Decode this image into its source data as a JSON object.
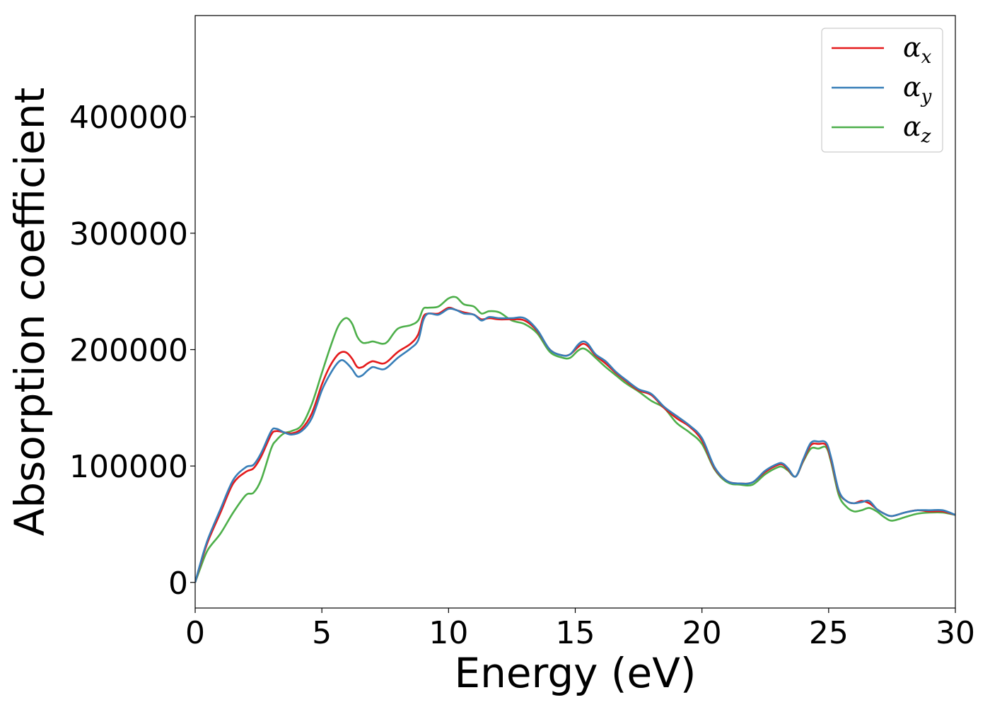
{
  "chart_data": {
    "type": "line",
    "title": "",
    "xlabel": "Energy (eV)",
    "ylabel": "Absorption coefficient",
    "xlim": [
      0,
      30
    ],
    "ylim": [
      -22000,
      487000
    ],
    "xticks": [
      0,
      5,
      10,
      15,
      20,
      25,
      30
    ],
    "yticks": [
      0,
      100000,
      200000,
      300000,
      400000
    ],
    "grid": false,
    "legend_position": "top-right",
    "series": [
      {
        "name": "α_x",
        "legend_base": "α",
        "legend_sub": "x",
        "color": "#e41a1c",
        "x": [
          0,
          0.2,
          0.5,
          1,
          1.5,
          2,
          2.3,
          2.6,
          3,
          3.2,
          3.5,
          3.8,
          4.2,
          4.6,
          5,
          5.3,
          5.6,
          5.8,
          6,
          6.2,
          6.4,
          6.6,
          6.8,
          7,
          7.2,
          7.4,
          7.6,
          8,
          8.5,
          8.8,
          9,
          9.2,
          9.6,
          10,
          10.3,
          10.6,
          11,
          11.3,
          11.6,
          12,
          12.5,
          13,
          13.5,
          14,
          14.5,
          14.8,
          15.1,
          15.3,
          15.5,
          15.8,
          16.2,
          16.6,
          17,
          17.5,
          18,
          18.5,
          19,
          19.5,
          20,
          20.5,
          21,
          21.5,
          22,
          22.5,
          23,
          23.2,
          23.4,
          23.7,
          24,
          24.3,
          24.6,
          24.9,
          25.1,
          25.4,
          25.7,
          26,
          26.3,
          26.6,
          26.9,
          27.2,
          27.5,
          28,
          28.5,
          29,
          29.5,
          30
        ],
        "y": [
          0,
          15000,
          35000,
          60000,
          85000,
          95000,
          98000,
          108000,
          127000,
          130000,
          129000,
          128000,
          132000,
          145000,
          170000,
          185000,
          195000,
          198000,
          197000,
          192000,
          185000,
          185000,
          188000,
          190000,
          189000,
          188000,
          190000,
          198000,
          205000,
          213000,
          228000,
          231000,
          231000,
          236000,
          234000,
          232000,
          230000,
          226000,
          227000,
          226000,
          226000,
          225000,
          216000,
          200000,
          195000,
          196000,
          202000,
          205000,
          203000,
          195000,
          188000,
          180000,
          173000,
          165000,
          161000,
          150000,
          141000,
          134000,
          122000,
          98000,
          87000,
          85000,
          86000,
          95000,
          101000,
          101000,
          97000,
          91000,
          105000,
          118000,
          119000,
          118000,
          105000,
          78000,
          70000,
          68000,
          70000,
          68000,
          63000,
          59000,
          57000,
          60000,
          62000,
          61000,
          61000,
          58000
        ]
      },
      {
        "name": "α_y",
        "legend_base": "α",
        "legend_sub": "y",
        "color": "#377eb8",
        "x": [
          0,
          0.2,
          0.5,
          1,
          1.5,
          2,
          2.3,
          2.6,
          3,
          3.2,
          3.5,
          3.8,
          4.2,
          4.6,
          5,
          5.3,
          5.6,
          5.8,
          6,
          6.2,
          6.4,
          6.6,
          6.8,
          7,
          7.2,
          7.4,
          7.6,
          8,
          8.5,
          8.8,
          9,
          9.2,
          9.6,
          10,
          10.3,
          10.6,
          11,
          11.3,
          11.6,
          12,
          12.5,
          13,
          13.5,
          14,
          14.5,
          14.8,
          15.1,
          15.3,
          15.5,
          15.8,
          16.2,
          16.6,
          17,
          17.5,
          18,
          18.5,
          19,
          19.5,
          20,
          20.5,
          21,
          21.5,
          22,
          22.5,
          23,
          23.2,
          23.4,
          23.7,
          24,
          24.3,
          24.6,
          24.9,
          25.1,
          25.4,
          25.7,
          26,
          26.3,
          26.6,
          26.9,
          27.2,
          27.5,
          28,
          28.5,
          29,
          29.5,
          30
        ],
        "y": [
          0,
          16000,
          37000,
          63000,
          88000,
          99000,
          101000,
          111000,
          130000,
          132000,
          129000,
          127000,
          130000,
          141000,
          165000,
          178000,
          188000,
          191000,
          188000,
          183000,
          177000,
          178000,
          182000,
          185000,
          184000,
          183000,
          185000,
          193000,
          201000,
          208000,
          225000,
          231000,
          230000,
          235000,
          234000,
          231000,
          230000,
          225000,
          228000,
          227000,
          227000,
          227000,
          217000,
          200000,
          195000,
          196000,
          204000,
          207000,
          205000,
          196000,
          190000,
          181000,
          174000,
          166000,
          162000,
          151000,
          143000,
          135000,
          124000,
          99000,
          87000,
          85000,
          86000,
          96000,
          102000,
          102000,
          98000,
          91000,
          106000,
          120000,
          121000,
          120000,
          107000,
          79000,
          70000,
          68000,
          69000,
          70000,
          63000,
          59000,
          57000,
          60000,
          62000,
          62000,
          62000,
          58000
        ]
      },
      {
        "name": "α_z",
        "legend_base": "α",
        "legend_sub": "z",
        "color": "#4daf4a",
        "x": [
          0,
          0.2,
          0.5,
          1,
          1.5,
          2,
          2.3,
          2.6,
          3,
          3.2,
          3.5,
          3.8,
          4.2,
          4.6,
          5,
          5.3,
          5.6,
          5.8,
          6,
          6.2,
          6.4,
          6.6,
          6.8,
          7,
          7.2,
          7.4,
          7.6,
          8,
          8.5,
          8.8,
          9,
          9.2,
          9.6,
          10,
          10.3,
          10.6,
          11,
          11.3,
          11.6,
          12,
          12.5,
          13,
          13.5,
          14,
          14.5,
          14.8,
          15.1,
          15.3,
          15.5,
          15.8,
          16.2,
          16.6,
          17,
          17.5,
          18,
          18.5,
          19,
          19.5,
          20,
          20.5,
          21,
          21.5,
          22,
          22.5,
          23,
          23.2,
          23.4,
          23.7,
          24,
          24.3,
          24.6,
          24.9,
          25.1,
          25.4,
          25.7,
          26,
          26.3,
          26.6,
          26.9,
          27.2,
          27.5,
          28,
          28.5,
          29,
          29.5,
          30
        ],
        "y": [
          0,
          12000,
          28000,
          42000,
          60000,
          75000,
          77000,
          88000,
          115000,
          122000,
          128000,
          130000,
          135000,
          153000,
          180000,
          200000,
          218000,
          225000,
          227000,
          222000,
          211000,
          206000,
          206000,
          207000,
          206000,
          205000,
          207000,
          218000,
          221000,
          225000,
          235000,
          236000,
          237000,
          244000,
          245000,
          239000,
          237000,
          231000,
          233000,
          232000,
          225000,
          222000,
          214000,
          198000,
          193000,
          193000,
          199000,
          201000,
          199000,
          193000,
          185000,
          178000,
          171000,
          164000,
          156000,
          150000,
          137000,
          129000,
          119000,
          97000,
          86000,
          84000,
          84000,
          93000,
          99000,
          99000,
          96000,
          91000,
          104000,
          115000,
          115000,
          116000,
          103000,
          75000,
          65000,
          61000,
          62000,
          64000,
          61000,
          56000,
          53000,
          56000,
          59000,
          60000,
          60000,
          58000
        ]
      }
    ]
  }
}
